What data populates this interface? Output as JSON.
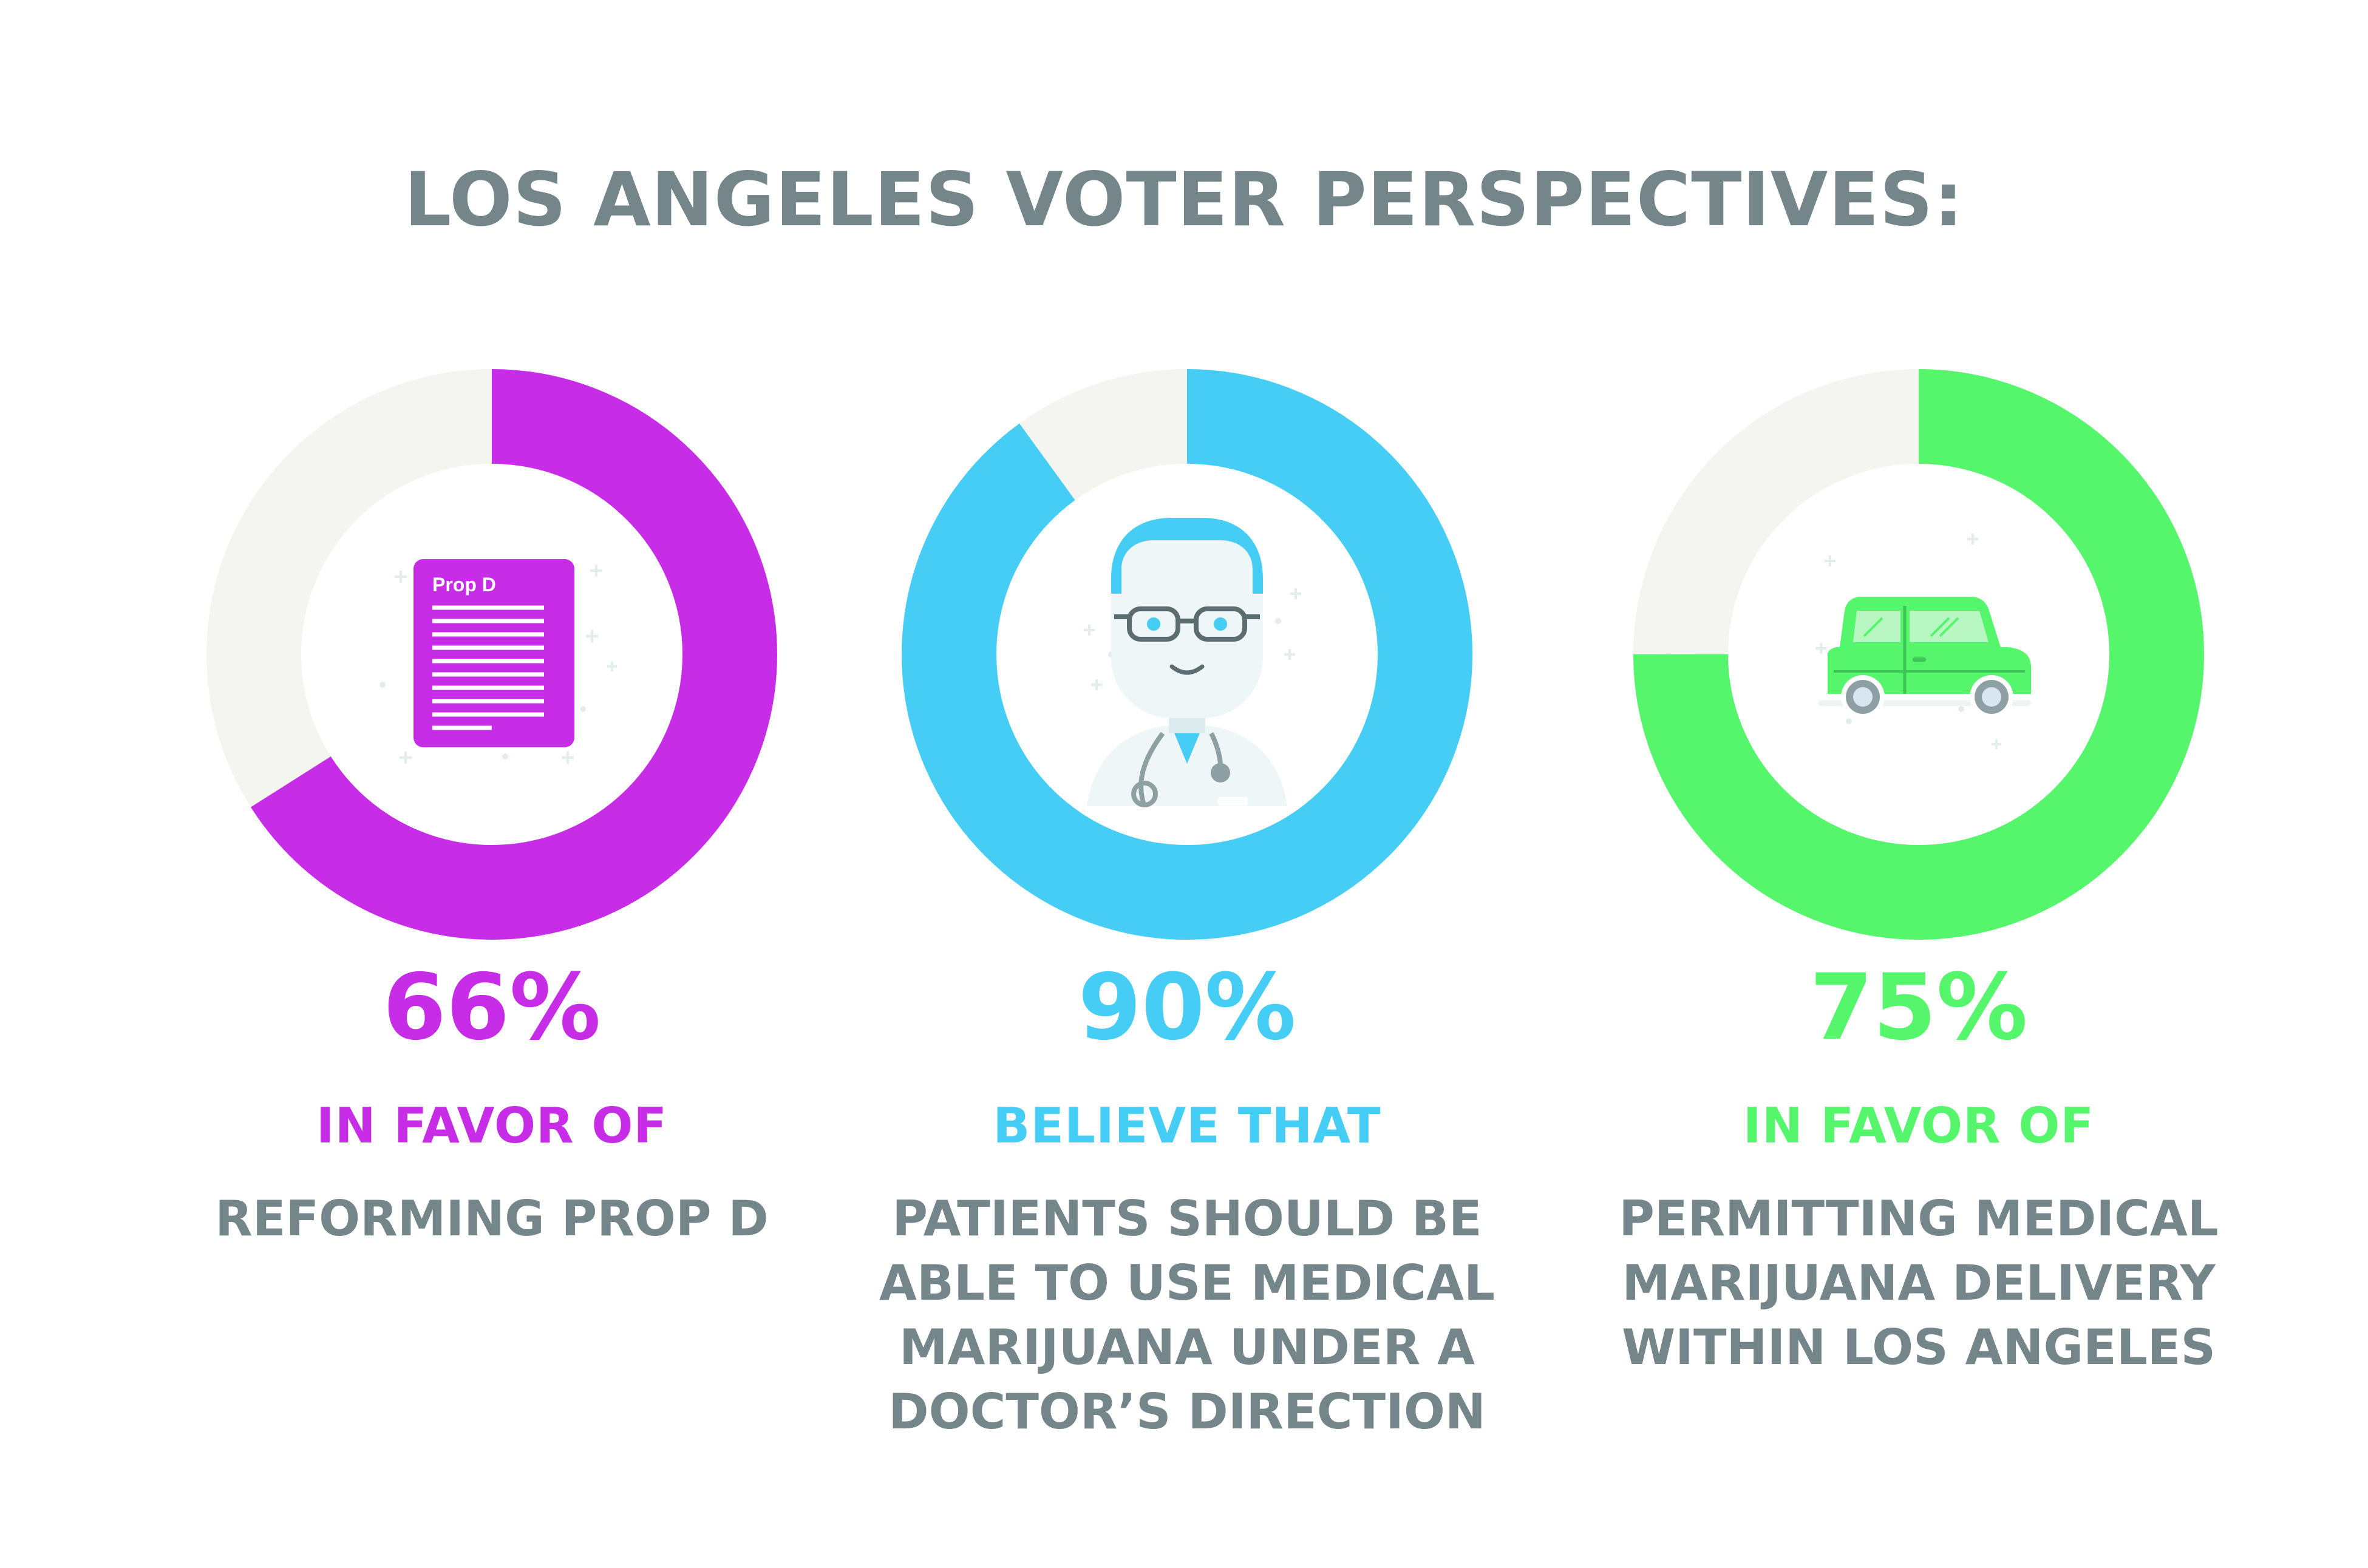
{
  "title": "LOS ANGELES VOTER PERSPECTIVES:",
  "colors": {
    "track": "#f4f4f1",
    "text_gray": "#75868a"
  },
  "chart_data": {
    "type": "pie",
    "title": "LOS ANGELES VOTER PERSPECTIVES:",
    "items": [
      {
        "value": 66,
        "label": "66%",
        "lead": "IN FAVOR OF",
        "description_lines": [
          "REFORMING PROP D"
        ],
        "color": "#c72ce6",
        "icon": "document-icon",
        "icon_text": "Prop D"
      },
      {
        "value": 90,
        "label": "90%",
        "lead": "BELIEVE THAT",
        "description_lines": [
          "PATIENTS SHOULD BE",
          "ABLE TO USE MEDICAL",
          "MARIJUANA UNDER A",
          "DOCTOR’S DIRECTION"
        ],
        "color": "#46cdf5",
        "icon": "doctor-icon"
      },
      {
        "value": 75,
        "label": "75%",
        "lead": "IN FAVOR OF",
        "description_lines": [
          "PERMITTING MEDICAL",
          "MARIJUANA DELIVERY",
          "WITHIN LOS ANGELES"
        ],
        "color": "#55f56c",
        "icon": "car-icon"
      }
    ]
  }
}
